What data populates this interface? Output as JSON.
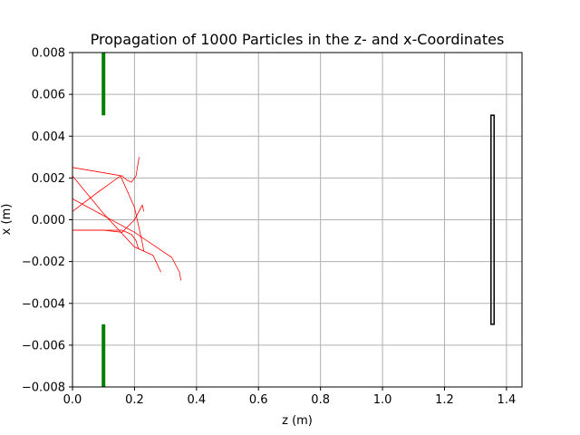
{
  "chart_data": {
    "type": "line",
    "title": "Propagation of 1000 Particles in the z- and x-Coordinates",
    "xlabel": "z (m)",
    "ylabel": "x (m)",
    "xlim": [
      0.0,
      1.45
    ],
    "ylim": [
      -0.008,
      0.008
    ],
    "xticks": [
      0.0,
      0.2,
      0.4,
      0.6,
      0.8,
      1.0,
      1.2,
      1.4
    ],
    "xtick_labels": [
      "0.0",
      "0.2",
      "0.4",
      "0.6",
      "0.8",
      "1.0",
      "1.2",
      "1.4"
    ],
    "yticks": [
      -0.008,
      -0.006,
      -0.004,
      -0.002,
      0.0,
      0.002,
      0.004,
      0.006,
      0.008
    ],
    "ytick_labels": [
      "−0.008",
      "−0.006",
      "−0.004",
      "−0.002",
      "0.000",
      "0.002",
      "0.004",
      "0.006",
      "0.008"
    ],
    "grid": true,
    "colors": {
      "trajectory": "#ff0000",
      "aperture": "#008000",
      "detector": "#000000",
      "grid": "#b0b0b0"
    },
    "series": [
      {
        "x": [
          0.0,
          0.16,
          0.175,
          0.19,
          0.205,
          0.215
        ],
        "y": [
          0.0025,
          0.0021,
          0.0019,
          0.0018,
          0.0021,
          0.003
        ]
      },
      {
        "x": [
          0.0,
          0.1,
          0.2,
          0.26,
          0.285
        ],
        "y": [
          0.0021,
          0.0003,
          -0.0013,
          -0.0017,
          -0.0025
        ]
      },
      {
        "x": [
          0.0,
          0.1,
          0.2,
          0.26,
          0.32,
          0.345,
          0.35
        ],
        "y": [
          0.001,
          0.0002,
          -0.0006,
          -0.0012,
          -0.0018,
          -0.0025,
          -0.0029
        ]
      },
      {
        "x": [
          0.0,
          0.08,
          0.155,
          0.2,
          0.225,
          0.23
        ],
        "y": [
          0.0004,
          0.0013,
          0.0021,
          0.0006,
          -0.0011,
          -0.0015
        ]
      },
      {
        "x": [
          0.0,
          0.1,
          0.16,
          0.19,
          0.205,
          0.213
        ],
        "y": [
          -0.0005,
          -0.0005,
          -0.0005,
          -0.0007,
          -0.001,
          -0.0014
        ]
      },
      {
        "x": [
          0.0,
          0.1,
          0.16,
          0.2,
          0.225,
          0.23
        ],
        "y": [
          -0.0005,
          -0.0005,
          -0.0006,
          0.0,
          0.0007,
          0.0004
        ]
      }
    ],
    "apertures": [
      {
        "z": 0.1,
        "x_from": 0.005,
        "x_to": 0.008
      },
      {
        "z": 0.1,
        "x_from": -0.008,
        "x_to": -0.005
      }
    ],
    "detector": {
      "z_from": 1.35,
      "z_to": 1.36,
      "x_from": -0.005,
      "x_to": 0.005
    }
  }
}
